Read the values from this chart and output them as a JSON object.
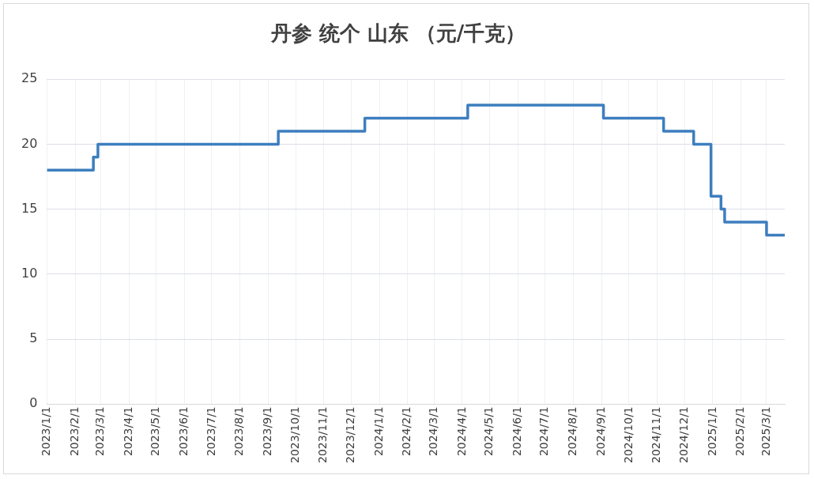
{
  "chart_data": {
    "type": "step",
    "title": "丹参 统个 山东 （元/千克）",
    "x": [
      "2023-01-01",
      "2023-02-21",
      "2023-02-26",
      "2023-09-12",
      "2023-12-16",
      "2024-04-07",
      "2024-09-03",
      "2024-11-08",
      "2024-12-11",
      "2024-12-30",
      "2025-01-10",
      "2025-01-14",
      "2025-03-01",
      "2025-03-21"
    ],
    "series": [
      {
        "color": "#3d7ebf",
        "values": [
          18,
          19,
          20,
          21,
          22,
          23,
          22,
          21,
          20,
          16,
          15,
          14,
          13,
          13
        ]
      }
    ],
    "xlim": [
      "2023-01-01",
      "2025-03-21"
    ],
    "xticks": [
      {
        "value": "2023-01-01",
        "label": "2023/1/1"
      },
      {
        "value": "2023-02-01",
        "label": "2023/2/1"
      },
      {
        "value": "2023-03-01",
        "label": "2023/3/1"
      },
      {
        "value": "2023-04-01",
        "label": "2023/4/1"
      },
      {
        "value": "2023-05-01",
        "label": "2023/5/1"
      },
      {
        "value": "2023-06-01",
        "label": "2023/6/1"
      },
      {
        "value": "2023-07-01",
        "label": "2023/7/1"
      },
      {
        "value": "2023-08-01",
        "label": "2023/8/1"
      },
      {
        "value": "2023-09-01",
        "label": "2023/9/1"
      },
      {
        "value": "2023-10-01",
        "label": "2023/10/1"
      },
      {
        "value": "2023-11-01",
        "label": "2023/11/1"
      },
      {
        "value": "2023-12-01",
        "label": "2023/12/1"
      },
      {
        "value": "2024-01-01",
        "label": "2024/1/1"
      },
      {
        "value": "2024-02-01",
        "label": "2024/2/1"
      },
      {
        "value": "2024-03-01",
        "label": "2024/3/1"
      },
      {
        "value": "2024-04-01",
        "label": "2024/4/1"
      },
      {
        "value": "2024-05-01",
        "label": "2024/5/1"
      },
      {
        "value": "2024-06-01",
        "label": "2024/6/1"
      },
      {
        "value": "2024-07-01",
        "label": "2024/7/1"
      },
      {
        "value": "2024-08-01",
        "label": "2024/8/1"
      },
      {
        "value": "2024-09-01",
        "label": "2024/9/1"
      },
      {
        "value": "2024-10-01",
        "label": "2024/10/1"
      },
      {
        "value": "2024-11-01",
        "label": "2024/11/1"
      },
      {
        "value": "2024-12-01",
        "label": "2024/12/1"
      },
      {
        "value": "2025-01-01",
        "label": "2025/1/1"
      },
      {
        "value": "2025-02-01",
        "label": "2025/2/1"
      },
      {
        "value": "2025-03-01",
        "label": "2025/3/1"
      }
    ],
    "ylim": [
      0,
      25
    ],
    "yticks": [
      0,
      5,
      10,
      15,
      20,
      25
    ],
    "grid": true,
    "legend": false,
    "marker": "none",
    "line_style": "solid"
  }
}
